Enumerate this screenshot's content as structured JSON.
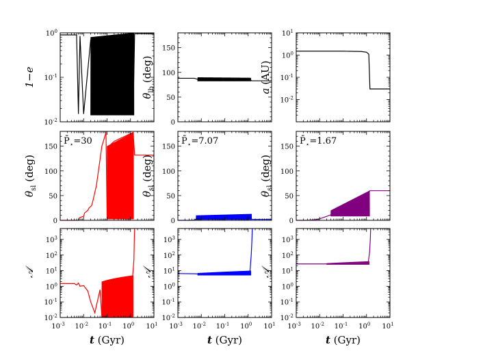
{
  "colors": {
    "black": "#000000",
    "red": "#ff0000",
    "blue": "#0000ff",
    "purple": "#800080"
  },
  "chart_data": [
    {
      "type": "line",
      "panel": "1-e",
      "xscale": "log",
      "yscale": "log",
      "xlim": [
        0.001,
        10
      ],
      "ylim": [
        0.01,
        1
      ],
      "yticks": [
        "10^0",
        "10^-1",
        "10^-2"
      ],
      "ylabel": "1−e",
      "xlabel": "",
      "series": [
        {
          "name": "1-e",
          "color": "#000000",
          "x": [
            0.001,
            0.005,
            0.006,
            0.007,
            0.01,
            0.02,
            0.1,
            0.3,
            0.8,
            1.3,
            1.5,
            10
          ],
          "y": [
            0.9,
            0.9,
            0.015,
            0.85,
            0.015,
            0.7,
            0.015,
            0.6,
            0.4,
            0.015,
            0.95,
            0.95
          ],
          "envelope": {
            "x_start": 0.02,
            "x_end": 1.4,
            "low": 0.014,
            "high_start": 0.8,
            "high_end": 1.0
          }
        }
      ]
    },
    {
      "type": "line",
      "panel": "theta_lb",
      "xscale": "log",
      "yscale": "linear",
      "xlim": [
        0.001,
        10
      ],
      "ylim": [
        0,
        180
      ],
      "yticks": [
        "0",
        "50",
        "100",
        "150"
      ],
      "ylabel": "θ",
      "ylabel_sub": "lb",
      "ylabel_unit": "(deg)",
      "xlabel": "",
      "series": [
        {
          "name": "theta_lb",
          "color": "#000000",
          "x": [
            0.001,
            0.005,
            0.01,
            0.1,
            1.2,
            1.4,
            10
          ],
          "y": [
            88,
            88,
            84,
            88,
            86,
            83,
            83
          ],
          "envelope": {
            "x_start": 0.007,
            "x_end": 1.3,
            "low": 82,
            "high_start": 90,
            "high_end": 89
          }
        }
      ]
    },
    {
      "type": "line",
      "panel": "a",
      "xscale": "log",
      "yscale": "log",
      "xlim": [
        0.001,
        10
      ],
      "ylim": [
        0.001,
        10
      ],
      "yticks": [
        "10^1",
        "10^0",
        "10^-1",
        "10^-2"
      ],
      "ylabel": "a",
      "ylabel_unit": "(AU)",
      "xlabel": "",
      "series": [
        {
          "name": "a",
          "color": "#000000",
          "x": [
            0.001,
            0.1,
            0.6,
            1.0,
            1.25,
            1.4,
            1.45,
            10
          ],
          "y": [
            1.5,
            1.5,
            1.45,
            1.35,
            1.1,
            0.03,
            0.03,
            0.03
          ]
        }
      ]
    },
    {
      "type": "line",
      "panel": "theta_sl_red",
      "xscale": "log",
      "yscale": "linear",
      "xlim": [
        0.001,
        10
      ],
      "ylim": [
        0,
        180
      ],
      "yticks": [
        "0",
        "50",
        "100",
        "150"
      ],
      "ylabel": "θ",
      "ylabel_sub": "sl",
      "ylabel_unit": "(deg)",
      "xlabel": "",
      "annotation": {
        "prefix": "P̄",
        "sub": "⋆",
        "value": "=30"
      },
      "series": [
        {
          "name": "theta_sl",
          "color": "#ff0000",
          "x": [
            0.001,
            0.006,
            0.0065,
            0.01,
            0.011,
            0.015,
            0.017,
            0.022,
            0.025,
            0.035,
            0.06,
            0.09,
            0.1,
            0.12,
            0.2,
            1.3,
            1.5,
            10
          ],
          "y": [
            0,
            0,
            5,
            8,
            15,
            20,
            25,
            30,
            40,
            70,
            150,
            178,
            5,
            150,
            160,
            178,
            132,
            132
          ],
          "envelope": {
            "x_start": 0.1,
            "x_end": 1.35,
            "low": 2,
            "high_start": 150,
            "high_end": 178
          }
        }
      ]
    },
    {
      "type": "line",
      "panel": "theta_sl_blue",
      "xscale": "log",
      "yscale": "linear",
      "xlim": [
        0.001,
        10
      ],
      "ylim": [
        0,
        180
      ],
      "yticks": [
        "0",
        "50",
        "100",
        "150"
      ],
      "ylabel": "θ",
      "ylabel_sub": "sl",
      "ylabel_unit": "(deg)",
      "xlabel": "",
      "annotation": {
        "prefix": "P̄",
        "sub": "⋆",
        "value": "=7.07"
      },
      "series": [
        {
          "name": "theta_sl",
          "color": "#0000ff",
          "x": [
            0.001,
            0.005,
            0.007,
            0.01,
            0.02,
            0.1,
            1.3,
            1.5,
            10
          ],
          "y": [
            0,
            0,
            5,
            8,
            5,
            4,
            3,
            2,
            2
          ],
          "envelope": {
            "x_start": 0.006,
            "x_end": 1.4,
            "low": 1,
            "high_start": 10,
            "high_end": 13
          }
        }
      ]
    },
    {
      "type": "line",
      "panel": "theta_sl_purple",
      "xscale": "log",
      "yscale": "linear",
      "xlim": [
        0.001,
        10
      ],
      "ylim": [
        0,
        180
      ],
      "yticks": [
        "0",
        "50",
        "100",
        "150"
      ],
      "ylabel": "θ",
      "ylabel_sub": "sl",
      "ylabel_unit": "(deg)",
      "xlabel": "",
      "annotation": {
        "prefix": "P̄",
        "sub": "⋆",
        "value": "=1.67"
      },
      "series": [
        {
          "name": "theta_sl",
          "color": "#800080",
          "x": [
            0.001,
            0.003,
            0.006,
            0.01,
            0.02,
            0.05,
            0.1,
            0.3,
            0.6,
            1.0,
            1.3,
            1.4,
            10
          ],
          "y": [
            0,
            0,
            1,
            3,
            8,
            15,
            22,
            30,
            40,
            50,
            58,
            60,
            60
          ],
          "envelope": {
            "x_start": 0.03,
            "x_end": 1.35,
            "low": 8,
            "high_start": 20,
            "high_end": 60
          }
        }
      ]
    },
    {
      "type": "line",
      "panel": "A_red",
      "xscale": "log",
      "yscale": "log",
      "xlim": [
        0.001,
        10
      ],
      "ylim": [
        0.01,
        5000
      ],
      "yticks": [
        "10^3",
        "10^2",
        "10^1",
        "10^0",
        "10^-1",
        "10^-2"
      ],
      "ylabel": "𝒜",
      "xticks": [
        "10^-3",
        "10^-2",
        "10^-1",
        "10^0",
        "10^1"
      ],
      "xlabel": "t",
      "xlabel_unit": "(Gyr)",
      "series": [
        {
          "name": "A",
          "color": "#ff0000",
          "x": [
            0.001,
            0.004,
            0.005,
            0.006,
            0.007,
            0.01,
            0.015,
            0.02,
            0.03,
            0.05,
            0.06,
            0.08,
            0.1,
            1.2,
            1.4,
            1.45,
            1.5
          ],
          "y": [
            1.5,
            1.5,
            1.2,
            1.6,
            1.0,
            1.1,
            0.5,
            0.1,
            0.02,
            0.6,
            0.01,
            0.5,
            1.5,
            2.5,
            50,
            800,
            5000
          ],
          "envelope": {
            "x_start": 0.06,
            "x_end": 1.3,
            "low": 0.01,
            "high_start": 2.0,
            "high_end": 5.0
          }
        }
      ]
    },
    {
      "type": "line",
      "panel": "A_blue",
      "xscale": "log",
      "yscale": "log",
      "xlim": [
        0.001,
        10
      ],
      "ylim": [
        0.01,
        5000
      ],
      "yticks": [
        "10^3",
        "10^2",
        "10^1",
        "10^0",
        "10^-1",
        "10^-2"
      ],
      "ylabel": "𝒜",
      "xticks": [
        "10^-3",
        "10^-2",
        "10^-1",
        "10^0",
        "10^1"
      ],
      "xlabel": "t",
      "xlabel_unit": "(Gyr)",
      "series": [
        {
          "name": "A",
          "color": "#0000ff",
          "x": [
            0.001,
            0.005,
            0.01,
            0.1,
            1.0,
            1.2,
            1.35,
            1.45,
            1.5
          ],
          "y": [
            6.5,
            6.3,
            6.0,
            6.0,
            6.0,
            10,
            100,
            1000,
            5000
          ],
          "envelope": {
            "x_start": 0.007,
            "x_end": 1.3,
            "low": 5.0,
            "high_start": 7.0,
            "high_end": 10.0
          }
        }
      ]
    },
    {
      "type": "line",
      "panel": "A_purple",
      "xscale": "log",
      "yscale": "log",
      "xlim": [
        0.001,
        10
      ],
      "ylim": [
        0.01,
        5000
      ],
      "yticks": [
        "10^3",
        "10^2",
        "10^1",
        "10^0",
        "10^-1",
        "10^-2"
      ],
      "ylabel": "𝒜",
      "xticks": [
        "10^-3",
        "10^-2",
        "10^-1",
        "10^0",
        "10^1"
      ],
      "xlabel": "t",
      "xlabel_unit": "(Gyr)",
      "series": [
        {
          "name": "A",
          "color": "#800080",
          "x": [
            0.001,
            0.005,
            0.01,
            0.1,
            1.0,
            1.2,
            1.35,
            1.45,
            1.5
          ],
          "y": [
            27,
            27,
            27,
            27,
            27,
            40,
            150,
            1000,
            5000
          ],
          "envelope": {
            "x_start": 0.02,
            "x_end": 1.3,
            "low": 24,
            "high_start": 30,
            "high_end": 40
          }
        }
      ]
    }
  ]
}
